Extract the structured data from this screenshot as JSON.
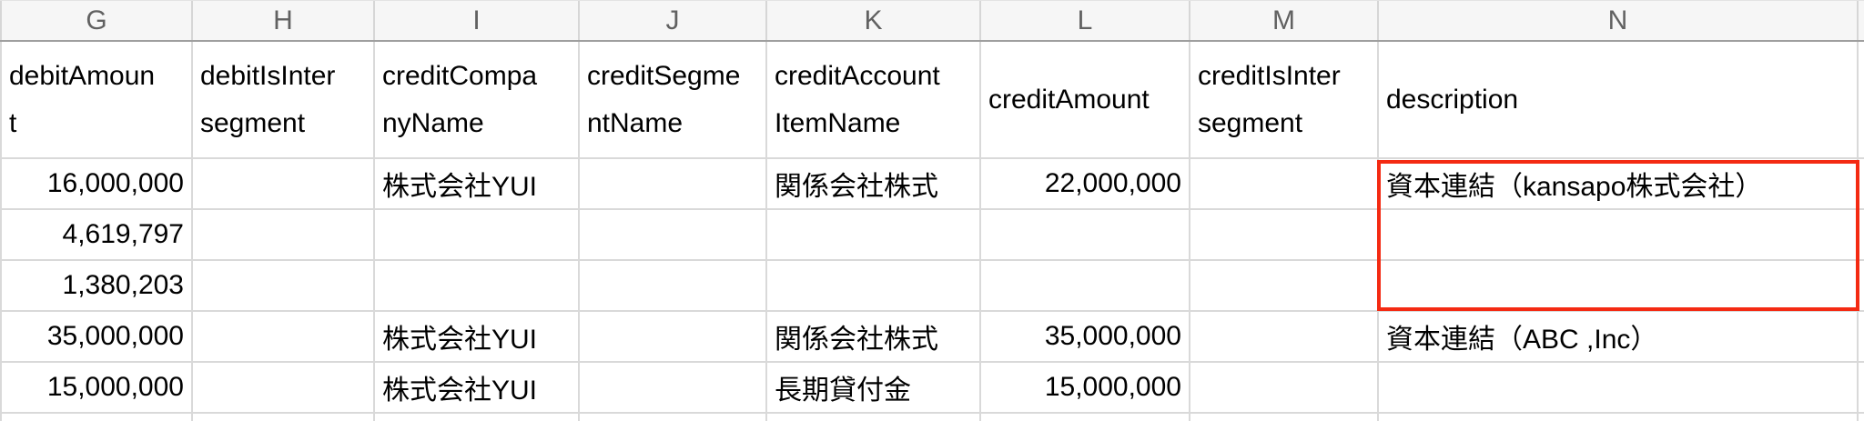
{
  "sheet": {
    "column_letters": [
      "G",
      "H",
      "I",
      "J",
      "K",
      "L",
      "M",
      "N"
    ],
    "headers": [
      "debitAmoun\nt",
      "debitIsInter\nsegment",
      "creditCompa\nnyName",
      "creditSegme\nntName",
      "creditAccount\nItemName",
      "creditAmount",
      "creditIsInter\nsegment",
      "description"
    ],
    "rows": [
      [
        "16,000,000",
        "",
        "株式会社YUI",
        "",
        "関係会社株式",
        "22,000,000",
        "",
        "資本連結（kansapo株式会社）"
      ],
      [
        "4,619,797",
        "",
        "",
        "",
        "",
        "",
        "",
        ""
      ],
      [
        "1,380,203",
        "",
        "",
        "",
        "",
        "",
        "",
        ""
      ],
      [
        "35,000,000",
        "",
        "株式会社YUI",
        "",
        "関係会社株式",
        "35,000,000",
        "",
        "資本連結（ABC ,Inc）"
      ],
      [
        "15,000,000",
        "",
        "株式会社YUI",
        "",
        "長期貸付金",
        "15,000,000",
        "",
        ""
      ]
    ],
    "annotation": {
      "type": "red-border-highlight",
      "applies_to": "description column, rows 1-3",
      "color": "#f42a12"
    }
  }
}
